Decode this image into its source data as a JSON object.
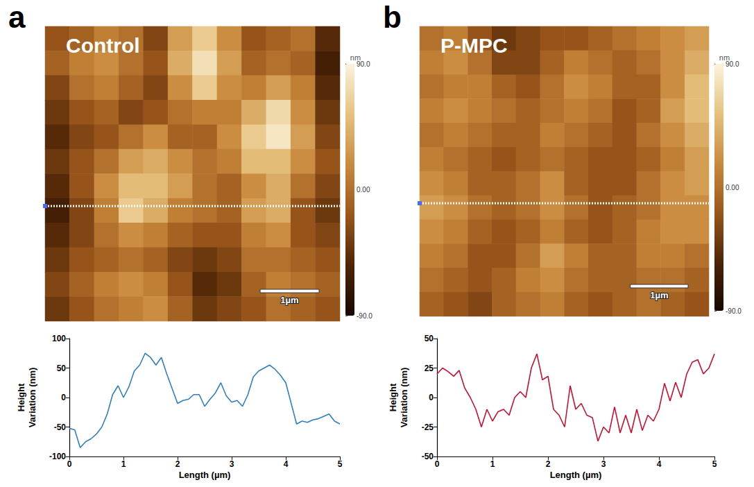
{
  "chart_data": [
    {
      "type": "heatmap",
      "panel": "a",
      "title": "Control",
      "xlim": [
        0,
        5
      ],
      "ylim": [
        0,
        5
      ],
      "tick_labels": false,
      "scale_bar": {
        "length": 1,
        "label": "1µm"
      },
      "color_bar": {
        "unit": "nm",
        "range": [
          -90,
          90
        ],
        "ticks": [
          {
            "value": 90,
            "label": "90.0"
          },
          {
            "value": 0,
            "label": "0.00"
          },
          {
            "value": -90,
            "label": "-90.0"
          }
        ]
      },
      "cells": [
        [
          -20,
          -10,
          10,
          0,
          -30,
          30,
          60,
          20,
          -20,
          -10,
          0,
          -50
        ],
        [
          -10,
          10,
          20,
          0,
          -20,
          40,
          75,
          30,
          -10,
          0,
          -10,
          -60
        ],
        [
          -30,
          0,
          10,
          -10,
          -30,
          20,
          60,
          20,
          10,
          30,
          10,
          -50
        ],
        [
          -40,
          -20,
          -10,
          -30,
          -20,
          0,
          10,
          10,
          40,
          70,
          20,
          -40
        ],
        [
          -50,
          -30,
          -20,
          0,
          20,
          -10,
          -10,
          20,
          60,
          80,
          30,
          -30
        ],
        [
          -40,
          -20,
          0,
          30,
          40,
          20,
          0,
          10,
          50,
          50,
          20,
          -20
        ],
        [
          -50,
          -20,
          20,
          50,
          50,
          30,
          0,
          -10,
          20,
          40,
          0,
          -30
        ],
        [
          -60,
          -30,
          10,
          60,
          40,
          10,
          0,
          -10,
          30,
          40,
          -20,
          -40
        ],
        [
          -50,
          -30,
          0,
          20,
          10,
          -10,
          -20,
          -20,
          10,
          20,
          -20,
          -30
        ],
        [
          -40,
          -20,
          -10,
          0,
          -10,
          -30,
          -40,
          -30,
          0,
          0,
          -10,
          -20
        ],
        [
          -30,
          -10,
          10,
          20,
          10,
          -20,
          -50,
          -40,
          -10,
          10,
          0,
          -10
        ],
        [
          -40,
          -20,
          0,
          10,
          20,
          -10,
          -40,
          -30,
          -20,
          0,
          -10,
          -20
        ]
      ]
    },
    {
      "type": "line",
      "xlabel": "Length (µm)",
      "ylabel": "Height Variation (nm)",
      "color": "#2e80c0",
      "xlim": [
        0,
        5
      ],
      "xticks": [
        0,
        1,
        2,
        3,
        4,
        5
      ],
      "ylim": [
        -100,
        100
      ],
      "yticks": [
        -100,
        -50,
        0,
        50,
        100
      ],
      "grid": false,
      "x": [
        0,
        0.1,
        0.2,
        0.3,
        0.4,
        0.5,
        0.6,
        0.7,
        0.8,
        0.9,
        1.0,
        1.1,
        1.2,
        1.3,
        1.4,
        1.5,
        1.6,
        1.7,
        1.8,
        1.9,
        2.0,
        2.1,
        2.2,
        2.3,
        2.4,
        2.5,
        2.6,
        2.7,
        2.8,
        2.9,
        3.0,
        3.1,
        3.2,
        3.3,
        3.4,
        3.5,
        3.6,
        3.7,
        3.8,
        3.9,
        4.0,
        4.1,
        4.2,
        4.3,
        4.4,
        4.5,
        4.6,
        4.7,
        4.8,
        4.9,
        5.0
      ],
      "values": [
        -52,
        -55,
        -85,
        -75,
        -70,
        -62,
        -50,
        -28,
        5,
        20,
        0,
        18,
        45,
        55,
        75,
        68,
        55,
        68,
        40,
        15,
        -10,
        -5,
        -3,
        5,
        5,
        -15,
        -3,
        8,
        25,
        3,
        -8,
        -5,
        -15,
        5,
        35,
        45,
        50,
        55,
        48,
        38,
        25,
        -10,
        -45,
        -40,
        -42,
        -38,
        -36,
        -32,
        -28,
        -40,
        -45
      ]
    },
    {
      "type": "heatmap",
      "panel": "b",
      "title": "P-MPC",
      "xlim": [
        0,
        5
      ],
      "ylim": [
        0,
        5
      ],
      "tick_labels": false,
      "scale_bar": {
        "length": 1,
        "label": "1µm"
      },
      "color_bar": {
        "unit": "nm",
        "range": [
          -90,
          90
        ],
        "ticks": [
          {
            "value": 90,
            "label": "90.0"
          },
          {
            "value": 0,
            "label": "0.00"
          },
          {
            "value": -90,
            "label": "-90.0"
          }
        ]
      },
      "cells": [
        [
          0,
          10,
          -20,
          -40,
          -30,
          -20,
          -20,
          -10,
          0,
          10,
          20,
          30
        ],
        [
          10,
          20,
          0,
          -30,
          -30,
          -10,
          10,
          0,
          -10,
          0,
          20,
          40
        ],
        [
          0,
          10,
          10,
          -10,
          -20,
          0,
          20,
          10,
          -10,
          -10,
          20,
          50
        ],
        [
          10,
          20,
          10,
          0,
          -10,
          0,
          10,
          0,
          -20,
          -10,
          30,
          50
        ],
        [
          0,
          10,
          0,
          -10,
          -10,
          10,
          0,
          -10,
          -20,
          0,
          20,
          40
        ],
        [
          10,
          0,
          -10,
          -20,
          -10,
          0,
          -10,
          -20,
          -20,
          -10,
          10,
          30
        ],
        [
          20,
          10,
          -10,
          -10,
          0,
          20,
          -10,
          -20,
          -20,
          0,
          20,
          30
        ],
        [
          30,
          20,
          0,
          -10,
          0,
          20,
          0,
          -20,
          -10,
          0,
          20,
          20
        ],
        [
          20,
          10,
          -10,
          -20,
          -10,
          10,
          -10,
          -20,
          -10,
          10,
          20,
          20
        ],
        [
          10,
          0,
          -20,
          -20,
          0,
          30,
          10,
          -10,
          -10,
          10,
          10,
          0
        ],
        [
          0,
          -10,
          -20,
          -10,
          10,
          20,
          0,
          -10,
          -10,
          0,
          0,
          -10
        ],
        [
          -10,
          -20,
          -30,
          -10,
          0,
          10,
          -10,
          -20,
          -10,
          0,
          -10,
          -20
        ]
      ]
    },
    {
      "type": "line",
      "xlabel": "Length (µm)",
      "ylabel": "Height Variation (nm)",
      "color": "#c8102e",
      "xlim": [
        0,
        5
      ],
      "xticks": [
        0,
        1,
        2,
        3,
        4,
        5
      ],
      "ylim": [
        -50,
        50
      ],
      "yticks": [
        -50,
        -25,
        0,
        25,
        50
      ],
      "grid": false,
      "x": [
        0,
        0.1,
        0.2,
        0.3,
        0.4,
        0.5,
        0.6,
        0.7,
        0.8,
        0.9,
        1.0,
        1.1,
        1.2,
        1.3,
        1.4,
        1.5,
        1.6,
        1.7,
        1.8,
        1.9,
        2.0,
        2.1,
        2.2,
        2.3,
        2.4,
        2.5,
        2.6,
        2.7,
        2.8,
        2.9,
        3.0,
        3.1,
        3.2,
        3.3,
        3.4,
        3.5,
        3.6,
        3.7,
        3.8,
        3.9,
        4.0,
        4.1,
        4.2,
        4.3,
        4.4,
        4.5,
        4.6,
        4.7,
        4.8,
        4.9,
        5.0
      ],
      "values": [
        20,
        25,
        22,
        18,
        23,
        8,
        0,
        -10,
        -25,
        -10,
        -20,
        -12,
        -10,
        -15,
        0,
        5,
        0,
        25,
        37,
        15,
        18,
        -10,
        -15,
        -25,
        10,
        -10,
        -5,
        -15,
        -17,
        -37,
        -25,
        -30,
        -8,
        -30,
        -15,
        -30,
        -10,
        -28,
        -15,
        -20,
        -10,
        12,
        -3,
        13,
        0,
        20,
        30,
        32,
        20,
        25,
        37
      ]
    }
  ]
}
